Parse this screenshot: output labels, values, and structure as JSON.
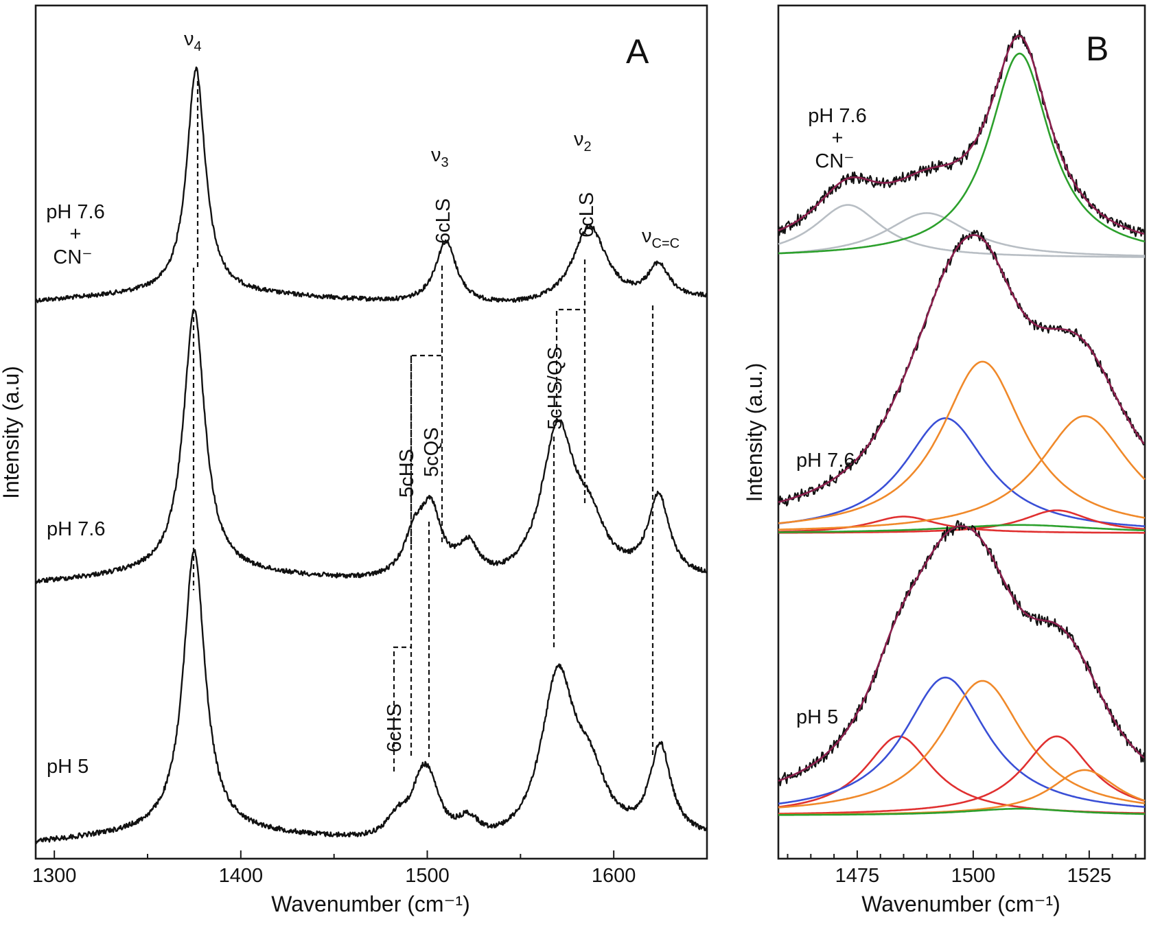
{
  "chart_data": [
    {
      "panel": "A",
      "type": "line",
      "xlabel": "Wavenumber (cm⁻¹)",
      "ylabel": "Intensity (a.u)",
      "xlim": [
        1290,
        1650
      ],
      "x_ticks": [
        1300,
        1400,
        1500,
        1600
      ],
      "grid": false,
      "series": [
        {
          "name": "pH 7.6 + CN⁻",
          "peaks": [
            {
              "x": 1376,
              "y": 1.0
            },
            {
              "x": 1510,
              "y": 0.28
            },
            {
              "x": 1587,
              "y": 0.35
            },
            {
              "x": 1624,
              "y": 0.15
            }
          ]
        },
        {
          "name": "pH 7.6",
          "peaks": [
            {
              "x": 1375,
              "y": 1.0
            },
            {
              "x": 1493,
              "y": 0.15
            },
            {
              "x": 1502,
              "y": 0.25
            },
            {
              "x": 1522,
              "y": 0.13
            },
            {
              "x": 1570,
              "y": 0.58
            },
            {
              "x": 1587,
              "y": 0.18
            },
            {
              "x": 1624,
              "y": 0.31
            }
          ]
        },
        {
          "name": "pH 5",
          "peaks": [
            {
              "x": 1375,
              "y": 1.0
            },
            {
              "x": 1484,
              "y": 0.07
            },
            {
              "x": 1497,
              "y": 0.17
            },
            {
              "x": 1502,
              "y": 0.12
            },
            {
              "x": 1522,
              "y": 0.07
            },
            {
              "x": 1570,
              "y": 0.58
            },
            {
              "x": 1587,
              "y": 0.2
            },
            {
              "x": 1625,
              "y": 0.32
            }
          ]
        }
      ],
      "annotations": {
        "nu4": "ν4",
        "nu3": "ν3",
        "nu2": "ν2",
        "nucc": "νC=C",
        "sixcls_a": "6cLS",
        "sixcls_b": "6cLS",
        "fivechs": "5cHS",
        "fivecqs": "5cQS",
        "fivechsqs": "5cHS/QS",
        "sixchs": "6cHS",
        "cn_trace": [
          "pH 7.6",
          "+",
          "CN⁻"
        ],
        "mid_trace": "pH 7.6",
        "low_trace": "pH 5",
        "letter": "A"
      }
    },
    {
      "panel": "B",
      "type": "line",
      "xlabel": "Wavenumber (cm⁻¹)",
      "ylabel": "Intensity (a.u.)",
      "xlim": [
        1458,
        1537
      ],
      "x_ticks": [
        1475,
        1500,
        1525
      ],
      "grid": false,
      "component_colors": {
        "data": "#111111",
        "fit_sum": "#8a1f4d",
        "gray": "#b8bec4",
        "green": "#2ca02c",
        "blue": "#3a4fd6",
        "orange": "#f0892a",
        "red": "#e03030"
      },
      "series": [
        {
          "name": "pH 7.6 + CN⁻",
          "components": [
            {
              "color": "gray",
              "center": 1473,
              "height": 0.26,
              "width": 9
            },
            {
              "color": "gray",
              "center": 1490,
              "height": 0.22,
              "width": 11
            },
            {
              "color": "green",
              "center": 1510,
              "height": 1.0,
              "width": 8
            }
          ]
        },
        {
          "name": "pH 7.6",
          "components": [
            {
              "color": "red",
              "center": 1485,
              "height": 0.08,
              "width": 9
            },
            {
              "color": "blue",
              "center": 1494,
              "height": 0.55,
              "width": 11
            },
            {
              "color": "orange",
              "center": 1502,
              "height": 0.82,
              "width": 11
            },
            {
              "color": "red",
              "center": 1518,
              "height": 0.11,
              "width": 9
            },
            {
              "color": "orange",
              "center": 1524,
              "height": 0.56,
              "width": 12
            },
            {
              "color": "green",
              "center": 1510,
              "height": 0.04,
              "width": 20
            }
          ]
        },
        {
          "name": "pH 5",
          "components": [
            {
              "color": "red",
              "center": 1484,
              "height": 0.47,
              "width": 9
            },
            {
              "color": "blue",
              "center": 1494,
              "height": 0.82,
              "width": 11
            },
            {
              "color": "orange",
              "center": 1502,
              "height": 0.8,
              "width": 11
            },
            {
              "color": "red",
              "center": 1518,
              "height": 0.47,
              "width": 9
            },
            {
              "color": "orange",
              "center": 1524,
              "height": 0.27,
              "width": 9
            },
            {
              "color": "green",
              "center": 1510,
              "height": 0.04,
              "width": 14
            }
          ]
        }
      ],
      "annotations": {
        "cn_trace": [
          "pH 7.6",
          "+",
          "CN⁻"
        ],
        "mid_trace": "pH 7.6",
        "low_trace": "pH 5",
        "letter": "B"
      }
    }
  ]
}
